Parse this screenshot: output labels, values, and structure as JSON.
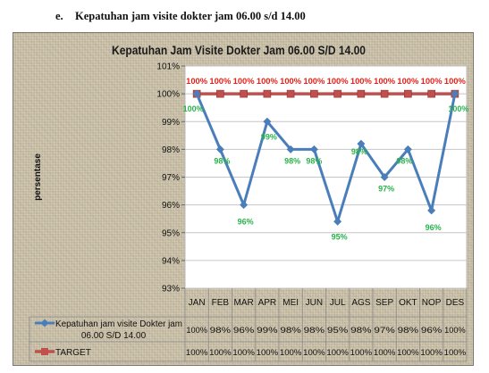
{
  "heading": {
    "number": "e.",
    "text": "Kepatuhan jam visite dokter jam 06.00 s/d 14.00"
  },
  "colors": {
    "series_line": "#4a7ebb",
    "target_line": "#c0504d",
    "series_label": "#28b34b",
    "target_label": "#e2231a",
    "grid": "#c6c6c6"
  },
  "chart_data": {
    "type": "line",
    "title": "Kepatuhan Jam Visite Dokter Jam 06.00 S/D 14.00",
    "ylabel": "persentase",
    "xlabel": "",
    "ylim": [
      0.93,
      1.01
    ],
    "ytick_labels": [
      "93%",
      "94%",
      "95%",
      "96%",
      "97%",
      "98%",
      "99%",
      "100%",
      "101%"
    ],
    "yticks": [
      0.93,
      0.94,
      0.95,
      0.96,
      0.97,
      0.98,
      0.99,
      1.0,
      1.01
    ],
    "categories": [
      "JAN",
      "FEB",
      "MAR",
      "APR",
      "MEI",
      "JUN",
      "JUL",
      "AGS",
      "SEP",
      "OKT",
      "NOP",
      "DES"
    ],
    "grid": true,
    "legend": "bottom, as data table",
    "series": [
      {
        "name": "Kepatuhan jam visite Dokter jam 06.00 S/D 14.00",
        "values": [
          1.0,
          0.98,
          0.96,
          0.99,
          0.98,
          0.98,
          0.954,
          0.982,
          0.97,
          0.98,
          0.958,
          1.0
        ],
        "labels": [
          "100%",
          "98%",
          "96%",
          "99%",
          "98%",
          "98%",
          "95%",
          "98%",
          "97%",
          "98%",
          "96%",
          "100%"
        ]
      },
      {
        "name": "TARGET",
        "values": [
          1.0,
          1.0,
          1.0,
          1.0,
          1.0,
          1.0,
          1.0,
          1.0,
          1.0,
          1.0,
          1.0,
          1.0
        ],
        "labels": [
          "100%",
          "100%",
          "100%",
          "100%",
          "100%",
          "100%",
          "100%",
          "100%",
          "100%",
          "100%",
          "100%",
          "100%"
        ]
      }
    ]
  }
}
